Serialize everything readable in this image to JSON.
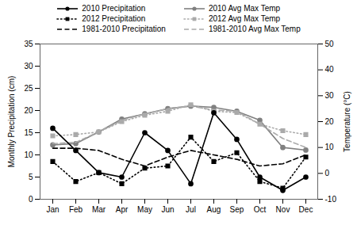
{
  "chart_data": {
    "type": "line",
    "categories": [
      "Jan",
      "Feb",
      "Mar",
      "Apr",
      "May",
      "Jun",
      "Jul",
      "Aug",
      "Sep",
      "Oct",
      "Nov",
      "Dec"
    ],
    "ylabel": "Monthly Precipitation (cm)",
    "y2label": "Temperature (°C)",
    "ylim": [
      0,
      35
    ],
    "yticks": [
      0,
      5,
      10,
      15,
      20,
      25,
      30,
      35
    ],
    "y2lim": [
      -10,
      50
    ],
    "y2ticks": [
      -10,
      0,
      10,
      20,
      30,
      40,
      50
    ],
    "legend": "top",
    "series": [
      {
        "name": "2010 Precipitation",
        "color": "#000000",
        "marker": "circle",
        "line_style": "solid",
        "values": [
          16,
          11,
          6,
          5,
          15,
          11,
          3.5,
          19.5,
          13.5,
          5,
          2,
          5
        ]
      },
      {
        "name": "2012 Precipitation",
        "color": "#000000",
        "marker": "square",
        "line_style": "dotted",
        "values": [
          8.5,
          4,
          6,
          3.5,
          7,
          7.5,
          14,
          8.5,
          10.5,
          4,
          2.5,
          9.5
        ]
      },
      {
        "name": "1981-2010 Precipitation",
        "color": "#000000",
        "line_style": "dashed",
        "values": [
          11.5,
          11.5,
          11,
          9,
          7.5,
          9.5,
          11,
          10,
          9,
          7.5,
          8,
          10
        ]
      },
      {
        "name": "2010 Avg Max Temp",
        "color": "#808080",
        "marker": "circle",
        "line_style": "solid",
        "axis": "y2",
        "values": [
          11,
          11.5,
          16,
          21,
          23,
          25,
          26,
          25.5,
          24,
          20.5,
          10,
          9
        ]
      },
      {
        "name": "2012 Avg Max Temp",
        "color": "#aaaaaa",
        "marker": "square",
        "line_style": "dotted",
        "axis": "y2",
        "values": [
          14.5,
          15,
          16,
          20,
          22.5,
          24,
          26.5,
          24,
          23.5,
          19,
          16.5,
          15
        ]
      },
      {
        "name": "1981-2010 Avg Max Temp",
        "color": "#aaaaaa",
        "line_style": "dashed",
        "axis": "y2",
        "values": [
          11.5,
          12,
          16,
          20.5,
          23,
          25,
          26,
          24.5,
          24,
          19,
          13.5,
          10
        ]
      }
    ]
  }
}
